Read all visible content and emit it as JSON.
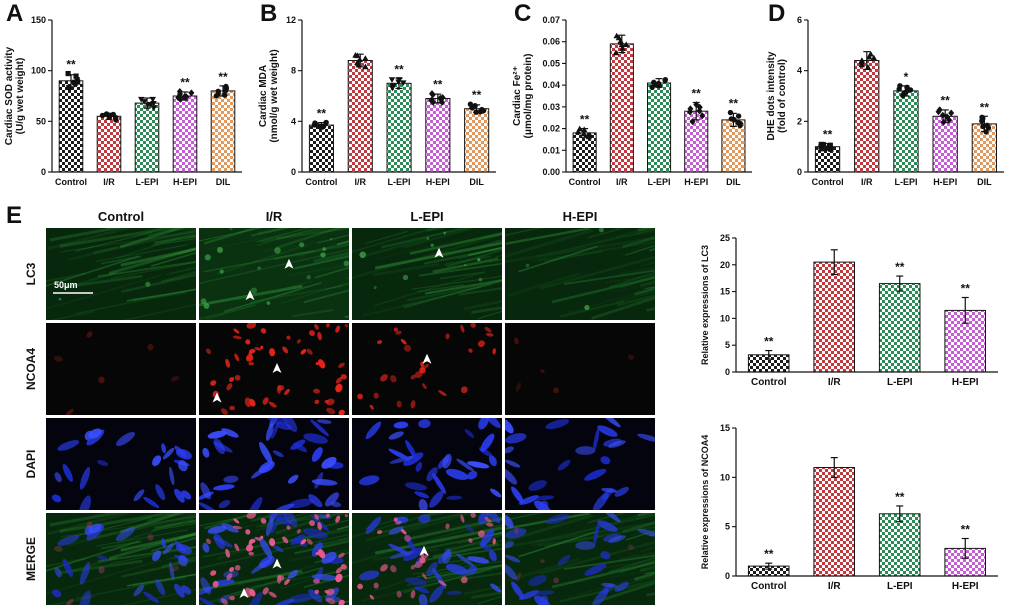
{
  "panels": {
    "A": "A",
    "B": "B",
    "C": "C",
    "D": "D",
    "E": "E"
  },
  "groups": {
    "names": [
      "Control",
      "I/R",
      "L-EPI",
      "H-EPI",
      "DIL"
    ],
    "colors": [
      "#1c1c1c",
      "#c13a40",
      "#2e8b57",
      "#c45fd3",
      "#e09a5f"
    ],
    "point_color": "#111111"
  },
  "chart_data": [
    {
      "id": "A",
      "type": "bar",
      "ylabel_lines": [
        "Cardiac SOD activity",
        "(U/g wet weight)"
      ],
      "categories": [
        "Control",
        "I/R",
        "L-EPI",
        "H-EPI",
        "DIL"
      ],
      "values": [
        90,
        55,
        68,
        75,
        80
      ],
      "errors": [
        6,
        3,
        5,
        4,
        5
      ],
      "sig": [
        "**",
        "",
        "",
        "**",
        "**"
      ],
      "ylim": [
        0,
        150
      ],
      "yticks": [
        0,
        50,
        100,
        150
      ],
      "decimals": 0,
      "markers": [
        "square",
        "circle",
        "triangle-down",
        "diamond",
        "circle"
      ],
      "scatter": true
    },
    {
      "id": "B",
      "type": "bar",
      "ylabel_lines": [
        "Cardiac MDA",
        "(nmol/g wet weight)"
      ],
      "categories": [
        "Control",
        "I/R",
        "L-EPI",
        "H-EPI",
        "DIL"
      ],
      "values": [
        3.7,
        8.8,
        7.0,
        5.8,
        5.0
      ],
      "errors": [
        0.2,
        0.5,
        0.4,
        0.35,
        0.3
      ],
      "sig": [
        "**",
        "",
        "**",
        "**",
        "**"
      ],
      "ylim": [
        0,
        12
      ],
      "yticks": [
        0,
        4,
        8,
        12
      ],
      "decimals": 0,
      "markers": [
        "circle",
        "triangle-up",
        "triangle-down",
        "diamond",
        "circle"
      ],
      "scatter": true
    },
    {
      "id": "C",
      "type": "bar",
      "ylabel_lines": [
        "Cardiac Fe²⁺",
        "(μmol/mg protein)"
      ],
      "categories": [
        "Control",
        "I/R",
        "L-EPI",
        "H-EPI",
        "DIL"
      ],
      "values": [
        0.018,
        0.059,
        0.041,
        0.028,
        0.024
      ],
      "errors": [
        0.002,
        0.004,
        0.002,
        0.004,
        0.003
      ],
      "sig": [
        "**",
        "",
        "",
        "**",
        "**"
      ],
      "ylim": [
        0,
        0.07
      ],
      "yticks": [
        0,
        0.01,
        0.02,
        0.03,
        0.04,
        0.05,
        0.06,
        0.07
      ],
      "decimals": 2,
      "markers": [
        "triangle-up",
        "triangle-up",
        "circle",
        "diamond",
        "circle"
      ],
      "scatter": true
    },
    {
      "id": "D",
      "type": "bar",
      "ylabel_lines": [
        "DHE dots intensity",
        "(fold of control)"
      ],
      "categories": [
        "Control",
        "I/R",
        "L-EPI",
        "H-EPI",
        "DIL"
      ],
      "values": [
        1.0,
        4.4,
        3.2,
        2.2,
        1.9
      ],
      "errors": [
        0.12,
        0.35,
        0.2,
        0.25,
        0.3
      ],
      "sig": [
        "**",
        "",
        "*",
        "**",
        "**"
      ],
      "ylim": [
        0,
        6
      ],
      "yticks": [
        0,
        2,
        4,
        6
      ],
      "decimals": 0,
      "markers": [
        "square",
        "triangle-up",
        "circle",
        "diamond",
        "circle"
      ],
      "scatter": true
    },
    {
      "id": "LC3",
      "type": "bar",
      "ylabel_lines": [
        "Relative expressions of LC3"
      ],
      "categories": [
        "Control",
        "I/R",
        "L-EPI",
        "H-EPI"
      ],
      "values": [
        3.2,
        20.5,
        16.5,
        11.5
      ],
      "errors": [
        0.8,
        2.3,
        1.4,
        2.4
      ],
      "sig": [
        "**",
        "",
        "**",
        "**"
      ],
      "ylim": [
        0,
        25
      ],
      "yticks": [
        0,
        5,
        10,
        15,
        20,
        25
      ],
      "decimals": 0,
      "scatter": false
    },
    {
      "id": "NCOA4",
      "type": "bar",
      "ylabel_lines": [
        "Relative expressions of NCOA4"
      ],
      "categories": [
        "Control",
        "I/R",
        "L-EPI",
        "H-EPI"
      ],
      "values": [
        1.0,
        11.0,
        6.3,
        2.8
      ],
      "errors": [
        0.3,
        1.0,
        0.8,
        1.0
      ],
      "sig": [
        "**",
        "",
        "**",
        "**"
      ],
      "ylim": [
        0,
        15
      ],
      "yticks": [
        0,
        5,
        10,
        15
      ],
      "decimals": 0,
      "scatter": false
    }
  ],
  "panel_e": {
    "columns": [
      "Control",
      "I/R",
      "L-EPI",
      "H-EPI"
    ],
    "rows": [
      "LC3",
      "NCOA4",
      "DAPI",
      "MERGE"
    ],
    "scale_bar_label": "50μm",
    "cells": [
      {
        "row": "LC3",
        "col": "Control",
        "arrows": [],
        "scalebar": true
      },
      {
        "row": "LC3",
        "col": "I/R",
        "arrows": [
          [
            0.34,
            0.74
          ],
          [
            0.6,
            0.4
          ]
        ]
      },
      {
        "row": "LC3",
        "col": "L-EPI",
        "arrows": [
          [
            0.58,
            0.28
          ]
        ]
      },
      {
        "row": "LC3",
        "col": "H-EPI",
        "arrows": []
      },
      {
        "row": "NCOA4",
        "col": "Control",
        "arrows": []
      },
      {
        "row": "NCOA4",
        "col": "I/R",
        "arrows": [
          [
            0.12,
            0.82
          ],
          [
            0.52,
            0.5
          ]
        ]
      },
      {
        "row": "NCOA4",
        "col": "L-EPI",
        "arrows": [
          [
            0.5,
            0.4
          ]
        ]
      },
      {
        "row": "NCOA4",
        "col": "H-EPI",
        "arrows": []
      },
      {
        "row": "DAPI",
        "col": "Control",
        "arrows": []
      },
      {
        "row": "DAPI",
        "col": "I/R",
        "arrows": []
      },
      {
        "row": "DAPI",
        "col": "L-EPI",
        "arrows": []
      },
      {
        "row": "DAPI",
        "col": "H-EPI",
        "arrows": []
      },
      {
        "row": "MERGE",
        "col": "Control",
        "arrows": []
      },
      {
        "row": "MERGE",
        "col": "I/R",
        "arrows": [
          [
            0.3,
            0.88
          ],
          [
            0.52,
            0.56
          ]
        ]
      },
      {
        "row": "MERGE",
        "col": "L-EPI",
        "arrows": [
          [
            0.48,
            0.42
          ]
        ]
      },
      {
        "row": "MERGE",
        "col": "H-EPI",
        "arrows": []
      }
    ]
  }
}
